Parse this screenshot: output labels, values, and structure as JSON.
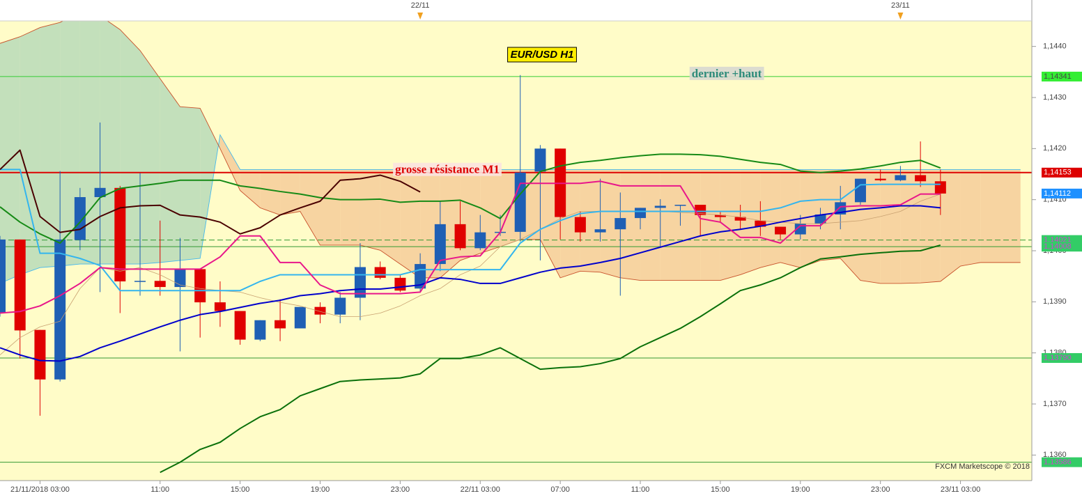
{
  "chart_data": {
    "type": "candlestick",
    "title": "EUR/USD H1",
    "watermark": "FXCM Marketscope © 2018",
    "categories": [
      null,
      null,
      "21/11/2018 03:00",
      null,
      null,
      null,
      null,
      null,
      "11:00",
      null,
      null,
      null,
      "15:00",
      null,
      null,
      null,
      "19:00",
      null,
      null,
      null,
      "23:00",
      null,
      null,
      null,
      "22/11 03:00",
      null,
      null,
      null,
      "07:00",
      null,
      null,
      null,
      "11:00",
      null,
      null,
      null,
      "15:00",
      null,
      null,
      null,
      "19:00",
      null,
      null,
      null,
      "23:00",
      null,
      null,
      null,
      "23/11 03:00",
      null,
      null,
      null
    ],
    "open": [
      1.13878,
      1.14022,
      1.13845,
      1.13748,
      1.14021,
      1.14105,
      1.14123,
      1.1394,
      1.13941,
      1.13929,
      1.13964,
      1.13899,
      1.13882,
      1.13826,
      1.13864,
      1.13848,
      1.1389,
      1.13875,
      1.13908,
      1.13968,
      1.13947,
      1.13926,
      1.13974,
      1.14052,
      1.14005,
      1.14036,
      1.14037,
      1.14155,
      1.142,
      1.14066,
      1.14036,
      1.14042,
      1.14064,
      1.14084,
      1.14088,
      1.1409,
      1.1407,
      1.14066,
      1.14059,
      1.14047,
      1.14032,
      1.14053,
      1.14071,
      1.14095,
      1.14141,
      1.14138,
      1.14148,
      1.14136,
      null,
      null,
      null,
      null
    ],
    "high": [
      1.14029,
      1.14022,
      1.13845,
      1.14156,
      1.14123,
      1.14251,
      1.14127,
      1.14152,
      1.14059,
      1.14025,
      1.13964,
      1.1394,
      1.13882,
      1.13864,
      1.13905,
      1.1389,
      1.13899,
      1.13919,
      1.14015,
      1.13979,
      1.13953,
      1.13995,
      1.14097,
      1.14097,
      1.1407,
      1.1407,
      1.14344,
      1.14207,
      1.142,
      1.14077,
      1.14141,
      1.14114,
      1.14084,
      1.14101,
      1.1409,
      1.1409,
      1.14077,
      1.1409,
      1.14097,
      1.14047,
      1.1407,
      1.14084,
      1.14127,
      1.14141,
      1.14159,
      1.14166,
      1.14214,
      1.14159,
      null,
      null,
      null,
      null
    ],
    "low": [
      1.13871,
      1.13789,
      1.13677,
      1.13744,
      1.14001,
      1.13919,
      1.13878,
      1.13912,
      1.13912,
      1.13803,
      1.1383,
      1.13851,
      1.13816,
      1.13823,
      1.13823,
      1.13848,
      1.13858,
      1.13858,
      1.13864,
      1.13944,
      1.13919,
      1.13919,
      1.1396,
      1.14001,
      1.14001,
      1.14029,
      1.14018,
      1.13981,
      1.14022,
      1.14018,
      1.14018,
      1.13912,
      1.14042,
      1.14008,
      1.14049,
      1.14029,
      1.14056,
      1.14042,
      1.14029,
      1.14022,
      1.14022,
      1.14042,
      1.14042,
      1.1409,
      1.14136,
      1.14136,
      1.14125,
      1.1407,
      null,
      null,
      null,
      null
    ],
    "close": [
      1.14022,
      1.13844,
      1.13748,
      1.14022,
      1.14105,
      1.14123,
      1.1394,
      1.13941,
      1.13929,
      1.13964,
      1.13899,
      1.13882,
      1.13826,
      1.13864,
      1.13848,
      1.1389,
      1.13875,
      1.13908,
      1.13968,
      1.13947,
      1.13922,
      1.13974,
      1.14052,
      1.14005,
      1.14036,
      1.14037,
      1.14153,
      1.142,
      1.14066,
      1.14036,
      1.14042,
      1.14064,
      1.14084,
      1.14088,
      1.1409,
      1.1407,
      1.14066,
      1.14059,
      1.14047,
      1.14032,
      1.14053,
      1.14071,
      1.14095,
      1.14141,
      1.14138,
      1.14148,
      1.14136,
      1.14112,
      null,
      null,
      null,
      null
    ],
    "up_color": "#1f5fb4",
    "down_color": "#e00000",
    "series": [
      {
        "color": "#c8a070",
        "width": 0.8,
        "values": [
          1.13796,
          1.1383,
          1.13851,
          1.13862,
          1.13926,
          1.13967,
          1.1396,
          1.13967,
          1.13953,
          1.13933,
          1.13926,
          1.13922,
          1.13919,
          1.13908,
          1.13899,
          1.13892,
          1.13881,
          1.13871,
          1.13871,
          1.13878,
          1.13892,
          1.13912,
          1.13926,
          1.13953,
          1.1397,
          1.14008,
          1.14022,
          1.14042,
          1.14063,
          1.14077,
          1.14077,
          1.14077,
          1.14077,
          1.14077,
          1.14075,
          1.14073,
          1.1407,
          1.14066,
          1.14059,
          1.14056,
          1.14053,
          1.14053,
          1.14056,
          1.14059,
          1.14067,
          1.14077,
          1.14097,
          1.14111,
          null,
          null,
          null,
          null
        ]
      },
      {
        "color": "#0a700a",
        "width": 2,
        "values": [
          null,
          null,
          null,
          null,
          null,
          null,
          null,
          null,
          1.13566,
          1.13586,
          1.13611,
          1.13625,
          1.13652,
          1.13675,
          1.13689,
          1.13716,
          1.1373,
          1.13744,
          1.13747,
          1.13749,
          1.13751,
          1.13759,
          1.13789,
          1.13789,
          1.13796,
          1.1381,
          1.13789,
          1.13768,
          1.13771,
          1.13773,
          1.13779,
          1.13789,
          1.13812,
          1.1383,
          1.13848,
          1.13871,
          1.13896,
          1.13922,
          1.13933,
          1.13947,
          1.13967,
          1.13984,
          1.13988,
          1.13993,
          1.13996,
          1.13999,
          1.14,
          1.14011,
          null,
          null,
          null,
          null
        ]
      },
      {
        "color": "#168a16",
        "width": 2,
        "values": [
          1.14086,
          1.14056,
          1.14033,
          1.14015,
          1.14056,
          1.14104,
          1.14122,
          1.14127,
          1.14132,
          1.14138,
          1.14138,
          1.14138,
          1.14127,
          1.14122,
          1.14116,
          1.14111,
          1.14104,
          1.141,
          1.141,
          1.14101,
          1.14095,
          1.14097,
          1.14097,
          1.14099,
          1.14084,
          1.14063,
          1.14111,
          1.14155,
          1.14166,
          1.14173,
          1.14177,
          1.14182,
          1.14186,
          1.14189,
          1.14189,
          1.14188,
          1.14185,
          1.14179,
          1.14173,
          1.14169,
          1.14156,
          1.14153,
          1.14156,
          1.1416,
          1.14166,
          1.14173,
          1.14177,
          1.14162,
          null,
          null,
          null,
          null
        ]
      },
      {
        "color": "#0000cc",
        "width": 2,
        "values": [
          1.1381,
          1.13796,
          1.13785,
          1.13784,
          1.13793,
          1.1381,
          1.13823,
          1.13837,
          1.13851,
          1.13864,
          1.13875,
          1.13881,
          1.13889,
          1.13897,
          1.13903,
          1.13912,
          1.13916,
          1.13922,
          1.13925,
          1.13925,
          1.13929,
          1.13933,
          1.13947,
          1.13944,
          1.13936,
          1.13936,
          1.13947,
          1.13958,
          1.13966,
          1.1397,
          1.13977,
          1.13985,
          1.13996,
          1.14007,
          1.14018,
          1.14029,
          1.14037,
          1.14042,
          1.14048,
          1.14056,
          1.14063,
          1.1407,
          1.14075,
          1.14081,
          1.14084,
          1.14088,
          1.14088,
          1.14084,
          null,
          null,
          null,
          null
        ]
      },
      {
        "color": "#33b5ee",
        "width": 2,
        "values": [
          1.14159,
          1.14159,
          1.13995,
          1.13995,
          1.13985,
          1.13971,
          1.13922,
          1.13922,
          1.13922,
          1.13922,
          1.13922,
          1.13922,
          1.13922,
          1.1394,
          1.13953,
          1.13953,
          1.13953,
          1.13953,
          1.13953,
          1.13953,
          1.13953,
          1.13963,
          1.13963,
          1.13963,
          1.13963,
          1.13963,
          1.14015,
          1.14042,
          1.14059,
          1.14073,
          1.14077,
          1.14077,
          1.14077,
          1.14077,
          1.14077,
          1.14077,
          1.14077,
          1.14077,
          1.14077,
          1.14084,
          1.14097,
          1.141,
          1.141,
          1.14129,
          1.1413,
          1.1413,
          1.1413,
          1.1413,
          null,
          null,
          null,
          null
        ]
      },
      {
        "color": "#e8168a",
        "width": 2,
        "values": [
          1.13878,
          1.13881,
          1.13892,
          1.13912,
          1.13936,
          1.13967,
          1.13964,
          1.13964,
          1.13964,
          1.13964,
          1.13964,
          1.13988,
          1.14029,
          1.14029,
          1.13977,
          1.13977,
          1.13933,
          1.13916,
          1.13916,
          1.13916,
          1.13916,
          1.13919,
          1.13981,
          1.13988,
          1.1399,
          1.14036,
          1.14132,
          1.14132,
          1.14132,
          1.14132,
          1.14136,
          1.14127,
          1.14127,
          1.14127,
          1.14127,
          1.14063,
          1.14056,
          1.14026,
          1.14026,
          1.14015,
          1.14049,
          1.14049,
          1.14086,
          1.14088,
          1.14088,
          1.1409,
          1.14111,
          1.14111,
          null,
          null,
          null,
          null
        ]
      },
      {
        "color": "#4a0000",
        "width": 2,
        "values": [
          1.14159,
          1.14197,
          1.14067,
          1.14036,
          1.14042,
          1.14067,
          1.14084,
          1.14088,
          1.14089,
          1.1407,
          1.14066,
          1.14056,
          1.14033,
          1.14045,
          1.1407,
          1.14084,
          1.14097,
          1.14138,
          1.14141,
          1.14148,
          1.14136,
          1.14115,
          null,
          null,
          null,
          null,
          null,
          null,
          null,
          null,
          null,
          null,
          null,
          null,
          null,
          null,
          null,
          null,
          null,
          null,
          null,
          null,
          null,
          null,
          null,
          null,
          null,
          null,
          null,
          null,
          null,
          null
        ]
      }
    ],
    "cloud": {
      "a": [
        1.13936,
        1.13953,
        1.13967,
        1.1397,
        1.13974,
        1.13974,
        1.13974,
        1.13974,
        1.13977,
        1.13981,
        1.13985,
        1.14227,
        1.14159,
        1.14159,
        1.14159,
        1.14159,
        1.14159,
        1.14159,
        1.14159,
        1.14159,
        1.14159,
        1.14159,
        1.14159,
        1.14159,
        1.14159,
        1.14159,
        1.14159,
        1.14159,
        1.14159,
        1.14159,
        1.14159,
        1.14159,
        1.14159,
        1.14159,
        1.14159,
        1.14159,
        1.14159,
        1.14159,
        1.14159,
        1.14159,
        1.14159,
        1.14159,
        1.14159,
        1.14159,
        1.14159,
        1.14159,
        1.14159,
        1.14159,
        1.14159,
        1.14159,
        1.14159,
        1.14159
      ],
      "b": [
        1.14406,
        1.14419,
        1.14437,
        1.14447,
        1.14467,
        1.1446,
        1.14433,
        1.14392,
        1.14337,
        1.14282,
        1.14279,
        1.142,
        1.14118,
        1.14084,
        1.1407,
        1.14077,
        1.14011,
        1.14011,
        1.14011,
        1.14001,
        1.13974,
        1.13947,
        1.13947,
        1.13981,
        1.13995,
        1.14008,
        1.14022,
        1.14022,
        1.13947,
        1.1396,
        1.13958,
        1.13947,
        1.13942,
        1.13942,
        1.13942,
        1.13942,
        1.13942,
        1.13953,
        1.13967,
        1.13977,
        1.13967,
        1.13981,
        1.13985,
        1.13942,
        1.13936,
        1.13936,
        1.13937,
        1.1394,
        1.1397,
        1.13977,
        1.13977,
        1.13977
      ],
      "a_color": "#44b8ee",
      "b_color": "#c8502a",
      "a_above_fill": "#f6cc9a",
      "b_above_fill": "#b9dab8"
    },
    "hlines": [
      {
        "value": 1.14341,
        "label": "1,14341",
        "color": "#33cc33",
        "badge": "#33ee33",
        "text_color": "#444444",
        "note": "dernier +haut"
      },
      {
        "value": 1.14153,
        "label": "1,14153",
        "color": "#dd0000",
        "badge": "#dd0000",
        "text_color": "#ffffff",
        "note": "grosse résistance M1"
      },
      {
        "value": 1.14021,
        "label": "1,14021",
        "color": "#339933",
        "dashed": true,
        "badge": "#33cc66",
        "text_color": "#cc44cc"
      },
      {
        "value": 1.14008,
        "label": "1,14008",
        "color": "#339933",
        "badge": "#33cc66",
        "text_color": "#cc44cc"
      },
      {
        "value": 1.1379,
        "label": "1,13790",
        "color": "#339933",
        "badge": "#33cc66",
        "text_color": "#cc44cc"
      },
      {
        "value": 1.13586,
        "label": "1,13586",
        "color": "#339933",
        "badge": "#33cc66",
        "text_color": "#cc44cc"
      }
    ],
    "last_price": {
      "value": 1.14112,
      "label": "1,14112",
      "badge": "#1e90ff",
      "text_color": "#ffffff"
    },
    "date_markers": [
      {
        "index": 21,
        "label": "22/11"
      },
      {
        "index": 45,
        "label": "23/11"
      }
    ],
    "ylim": [
      1.1355,
      1.1445
    ],
    "yticks": [
      {
        "value": 1.136,
        "label": "1,1360"
      },
      {
        "value": 1.137,
        "label": "1,1370"
      },
      {
        "value": 1.138,
        "label": "1,1380"
      },
      {
        "value": 1.139,
        "label": "1,1390"
      },
      {
        "value": 1.14,
        "label": "1,1400"
      },
      {
        "value": 1.141,
        "label": "1,1410"
      },
      {
        "value": 1.142,
        "label": "1,1420"
      },
      {
        "value": 1.143,
        "label": "1,1430"
      },
      {
        "value": 1.144,
        "label": "1,1440"
      }
    ]
  }
}
